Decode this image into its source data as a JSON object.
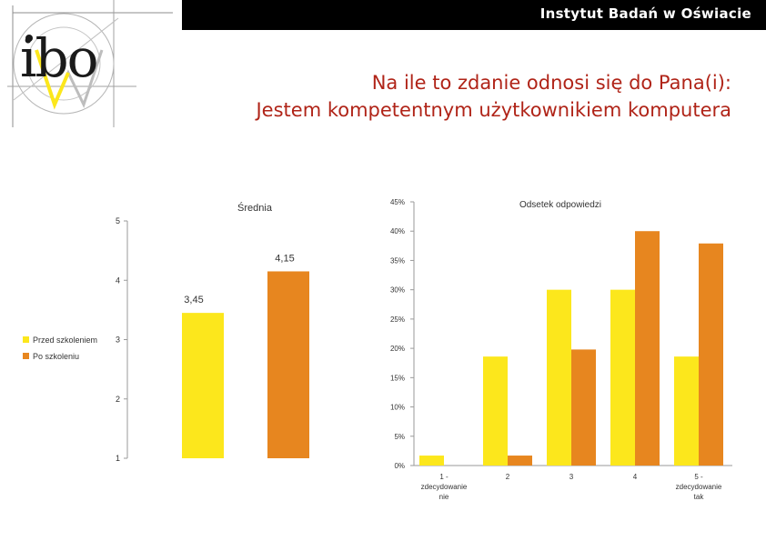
{
  "header": {
    "organization": "Instytut Badań w Oświacie",
    "logo_text": "ibo"
  },
  "title": {
    "line1": "Na ile to zdanie odnosi się do Pana(i):",
    "line2": "Jestem kompetentnym użytkownikiem komputera"
  },
  "colors": {
    "series_before": "#FCE71C",
    "series_after": "#E7861F"
  },
  "legend": {
    "items": [
      "Przed szkoleniem",
      "Po szkoleniu"
    ]
  },
  "chart_data": [
    {
      "type": "bar",
      "title": "Średnia",
      "categories": [
        ""
      ],
      "series": [
        {
          "name": "Przed szkoleniem",
          "values": [
            3.45
          ],
          "labels": [
            "3,45"
          ]
        },
        {
          "name": "Po szkoleniu",
          "values": [
            4.15
          ],
          "labels": [
            "4,15"
          ]
        }
      ],
      "ylim": [
        1,
        5
      ],
      "yticks": [
        "1",
        "2",
        "3",
        "4",
        "5"
      ],
      "legend": "left"
    },
    {
      "type": "bar",
      "title": "Odsetek odpowiedzi",
      "categories": [
        "1 - zdecydowanie nie",
        "2",
        "3",
        "4",
        "5 - zdecydowanie tak"
      ],
      "category_labels": [
        [
          "1 -",
          "zdecydowanie",
          "nie"
        ],
        [
          "2"
        ],
        [
          "3"
        ],
        [
          "4"
        ],
        [
          "5 -",
          "zdecydowanie",
          "tak"
        ]
      ],
      "series": [
        {
          "name": "Przed szkoleniem",
          "values": [
            1.7,
            18.6,
            30.0,
            30.0,
            18.6
          ]
        },
        {
          "name": "Po szkoleniu",
          "values": [
            0,
            1.7,
            19.8,
            40.0,
            37.9
          ]
        }
      ],
      "ylim": [
        0,
        45
      ],
      "yticks": [
        "0%",
        "5%",
        "10%",
        "15%",
        "20%",
        "25%",
        "30%",
        "35%",
        "40%",
        "45%"
      ]
    }
  ]
}
